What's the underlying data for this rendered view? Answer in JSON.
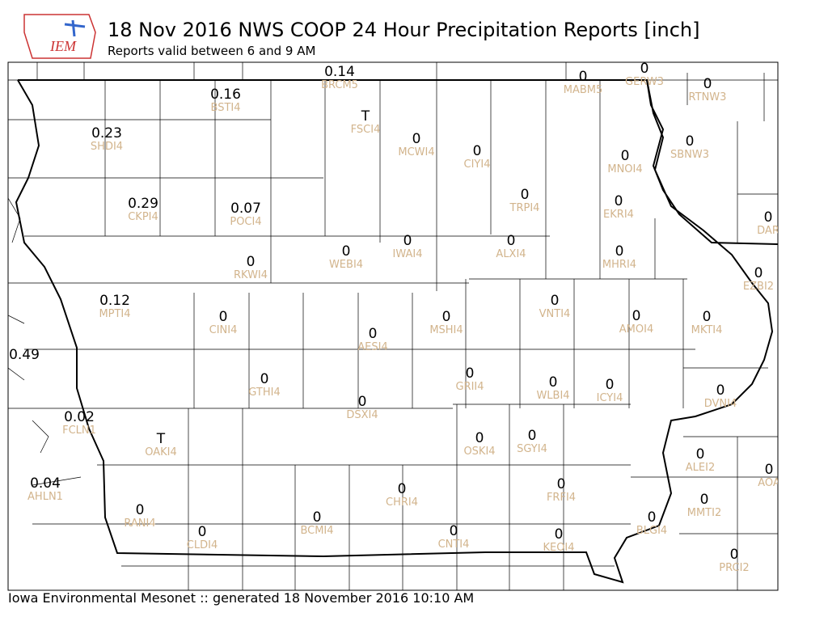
{
  "header": {
    "logo": "IEM",
    "title": "18 Nov 2016 NWS COOP 24 Hour Precipitation Reports [inch]",
    "subtitle": "Reports valid between 6 and 9 AM"
  },
  "footer": "Iowa Environmental Mesonet :: generated 18 November 2016 10:10 AM",
  "stations": [
    {
      "value": "0.14",
      "id": "BRCM5"
    },
    {
      "value": "0",
      "id": "MABM5"
    },
    {
      "value": "0",
      "id": "GERW3"
    },
    {
      "value": "0",
      "id": "RTNW3"
    },
    {
      "value": "0.16",
      "id": "BSTI4"
    },
    {
      "value": "T",
      "id": "FSCI4"
    },
    {
      "value": "0.23",
      "id": "SHDI4"
    },
    {
      "value": "0",
      "id": "MCWI4"
    },
    {
      "value": "0",
      "id": "CIYI4"
    },
    {
      "value": "0",
      "id": "SBNW3"
    },
    {
      "value": "0",
      "id": "MNOI4"
    },
    {
      "value": "0.29",
      "id": "CKPI4"
    },
    {
      "value": "0.07",
      "id": "POCI4"
    },
    {
      "value": "0",
      "id": "TRPI4"
    },
    {
      "value": "0",
      "id": "EKRI4"
    },
    {
      "value": "0",
      "id": "DAR"
    },
    {
      "value": "0",
      "id": "ALXI4"
    },
    {
      "value": "0",
      "id": "IWAI4"
    },
    {
      "value": "0",
      "id": "WEBI4"
    },
    {
      "value": "0",
      "id": "RKWI4"
    },
    {
      "value": "0",
      "id": "MHRI4"
    },
    {
      "value": "0",
      "id": "EZBI2"
    },
    {
      "value": "0.12",
      "id": "MPTI4"
    },
    {
      "value": "0",
      "id": "VNTI4"
    },
    {
      "value": "0",
      "id": "CINI4"
    },
    {
      "value": "0",
      "id": "MSHI4"
    },
    {
      "value": "0",
      "id": "AMOI4"
    },
    {
      "value": "0",
      "id": "MKTI4"
    },
    {
      "value": "0",
      "id": "AESI4"
    },
    {
      "value": "0.49"
    },
    {
      "value": "0",
      "id": "GRII4"
    },
    {
      "value": "0",
      "id": "GTHI4"
    },
    {
      "value": "0",
      "id": "WLBI4"
    },
    {
      "value": "0",
      "id": "ICYI4"
    },
    {
      "value": "0",
      "id": "DVNI4"
    },
    {
      "value": "0",
      "id": "DSXI4"
    },
    {
      "value": "0.02",
      "id": "FCLN1"
    },
    {
      "value": "T",
      "id": "OAKI4"
    },
    {
      "value": "0",
      "id": "OSKI4"
    },
    {
      "value": "0",
      "id": "SGYI4"
    },
    {
      "value": "0",
      "id": "ALEI2"
    },
    {
      "value": "0",
      "id": "AOA"
    },
    {
      "value": "0.04",
      "id": "AHLN1"
    },
    {
      "value": "0",
      "id": "FRFI4"
    },
    {
      "value": "0",
      "id": "CHRI4"
    },
    {
      "value": "0",
      "id": "MMTI2"
    },
    {
      "value": "0",
      "id": "RANI4"
    },
    {
      "value": "0",
      "id": "BCMI4"
    },
    {
      "value": "0",
      "id": "BLGI4"
    },
    {
      "value": "0",
      "id": "CLDI4"
    },
    {
      "value": "0",
      "id": "CNTI4"
    },
    {
      "value": "0",
      "id": "KEOI4"
    },
    {
      "value": "0",
      "id": "PRCI2"
    }
  ]
}
